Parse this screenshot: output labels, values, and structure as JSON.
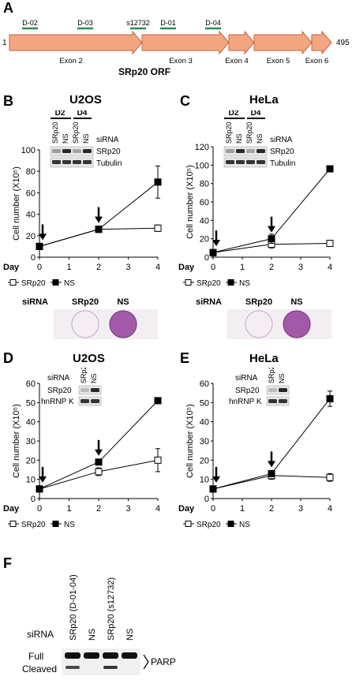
{
  "panelA": {
    "letter": "A",
    "start": "1",
    "end": "495",
    "caption": "SRp20 ORF",
    "exons": [
      "Exon 2",
      "Exon 3",
      "Exon 4",
      "Exon 5",
      "Exon 6"
    ],
    "sites": [
      "D-02",
      "D-03",
      "s12732",
      "D-01",
      "D-04"
    ],
    "colors": {
      "orf": "#f4a582",
      "orf_edge": "#c8643c",
      "site": "#2e8b57"
    }
  },
  "panelB": {
    "letter": "B",
    "cell": "U2OS",
    "blot": {
      "days": [
        "D2",
        "D4"
      ],
      "lanes": [
        "SRp20",
        "NS",
        "SRp20",
        "NS"
      ],
      "labels": [
        "siRNA",
        "SRp20",
        "Tubulin"
      ]
    },
    "legend": [
      "SRp20",
      "NS"
    ],
    "dish": {
      "label": "siRNA",
      "cols": [
        "SRp20",
        "NS"
      ]
    },
    "chart_data": {
      "type": "line",
      "xlabel": "Day",
      "ylabel": "Cell number (X10⁵)",
      "xlim": [
        0,
        4
      ],
      "ylim": [
        0,
        100
      ],
      "xticks": [
        0,
        1,
        2,
        3,
        4
      ],
      "yticks": [
        0,
        20,
        40,
        60,
        80,
        100
      ],
      "arrows_at": [
        0,
        2
      ],
      "series": [
        {
          "name": "SRp20",
          "marker": "open-square",
          "x": [
            0,
            2,
            4
          ],
          "y": [
            10,
            26,
            27
          ],
          "err": [
            1,
            2,
            3
          ]
        },
        {
          "name": "NS",
          "marker": "filled-square",
          "x": [
            0,
            2,
            4
          ],
          "y": [
            10,
            26,
            70
          ],
          "err": [
            1,
            3,
            15
          ]
        }
      ]
    }
  },
  "panelC": {
    "letter": "C",
    "cell": "HeLa",
    "blot": {
      "days": [
        "D2",
        "D4"
      ],
      "lanes": [
        "SRp20",
        "NS",
        "SRp20",
        "NS"
      ],
      "labels": [
        "siRNA",
        "SRp20",
        "Tubulin"
      ]
    },
    "legend": [
      "SRp20",
      "NS"
    ],
    "dish": {
      "label": "siRNA",
      "cols": [
        "SRp20",
        "NS"
      ]
    },
    "chart_data": {
      "type": "line",
      "xlabel": "Day",
      "ylabel": "Cell number (X10⁵)",
      "xlim": [
        0,
        4
      ],
      "ylim": [
        0,
        120
      ],
      "xticks": [
        0,
        1,
        2,
        3,
        4
      ],
      "yticks": [
        0,
        20,
        40,
        60,
        80,
        100,
        120
      ],
      "arrows_at": [
        0,
        2
      ],
      "series": [
        {
          "name": "SRp20",
          "marker": "open-square",
          "x": [
            0,
            2,
            4
          ],
          "y": [
            5,
            14,
            15
          ],
          "err": [
            1,
            4,
            3
          ]
        },
        {
          "name": "NS",
          "marker": "filled-square",
          "x": [
            0,
            2,
            4
          ],
          "y": [
            5,
            20,
            96
          ],
          "err": [
            1,
            5,
            2
          ]
        }
      ]
    }
  },
  "panelD": {
    "letter": "D",
    "cell": "U2OS",
    "blot": {
      "lanes": [
        "SRp20",
        "NS"
      ],
      "labels": [
        "siRNA",
        "SRp20",
        "hnRNP K"
      ]
    },
    "legend": [
      "SRp20",
      "NS"
    ],
    "chart_data": {
      "type": "line",
      "xlabel": "Day",
      "ylabel": "Cell number (X10⁵)",
      "xlim": [
        0,
        4
      ],
      "ylim": [
        0,
        60
      ],
      "xticks": [
        0,
        1,
        2,
        3,
        4
      ],
      "yticks": [
        0,
        10,
        20,
        30,
        40,
        50,
        60
      ],
      "arrows_at": [
        0,
        2
      ],
      "series": [
        {
          "name": "SRp20",
          "marker": "open-square",
          "x": [
            0,
            2,
            4
          ],
          "y": [
            5,
            14,
            20
          ],
          "err": [
            0.5,
            2,
            6
          ]
        },
        {
          "name": "NS",
          "marker": "filled-square",
          "x": [
            0,
            2,
            4
          ],
          "y": [
            5,
            19,
            51
          ],
          "err": [
            0.5,
            1,
            1
          ]
        }
      ]
    }
  },
  "panelE": {
    "letter": "E",
    "cell": "HeLa",
    "blot": {
      "lanes": [
        "SRp20",
        "NS"
      ],
      "labels": [
        "siRNA",
        "SRp20",
        "hnRNP K"
      ]
    },
    "legend": [
      "SRp20",
      "NS"
    ],
    "chart_data": {
      "type": "line",
      "xlabel": "Day",
      "ylabel": "Cell number (X10⁵)",
      "xlim": [
        0,
        4
      ],
      "ylim": [
        0,
        60
      ],
      "xticks": [
        0,
        1,
        2,
        3,
        4
      ],
      "yticks": [
        0,
        10,
        20,
        30,
        40,
        50,
        60
      ],
      "arrows_at": [
        0,
        2
      ],
      "series": [
        {
          "name": "SRp20",
          "marker": "open-square",
          "x": [
            0,
            2,
            4
          ],
          "y": [
            5,
            12,
            11
          ],
          "err": [
            0.5,
            2,
            2
          ]
        },
        {
          "name": "NS",
          "marker": "filled-square",
          "x": [
            0,
            2,
            4
          ],
          "y": [
            5,
            13,
            52
          ],
          "err": [
            0.5,
            1,
            4
          ]
        }
      ]
    }
  },
  "panelF": {
    "letter": "F",
    "siRNA": "siRNA",
    "lanes": [
      "SRp20 (D-01-04)",
      "NS",
      "SRp20 (s12732)",
      "NS"
    ],
    "rows": [
      "Full",
      "Cleaved"
    ],
    "protein": "PARP"
  }
}
